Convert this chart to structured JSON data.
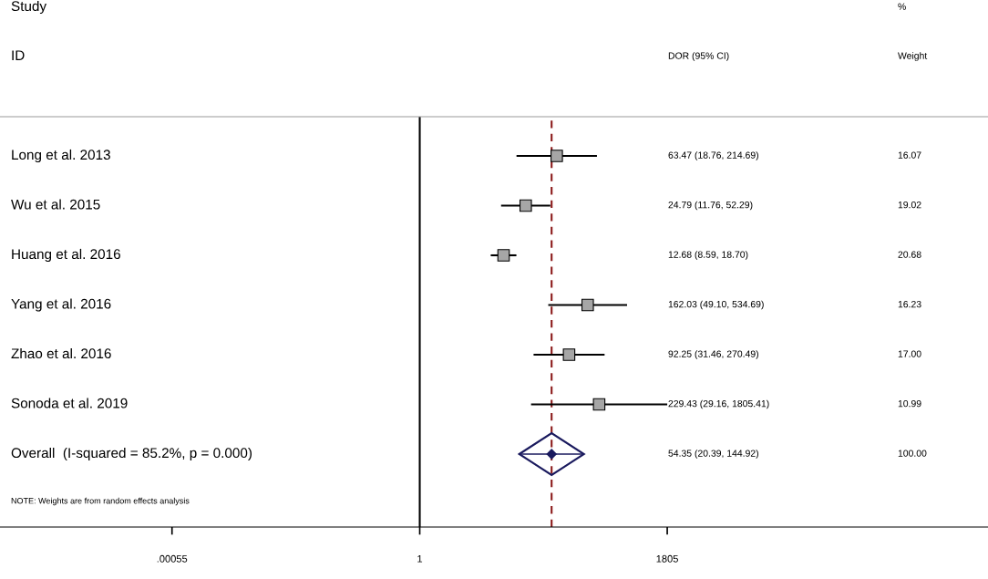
{
  "chart_data": {
    "type": "scatter",
    "orientation": "horizontal",
    "log": "x",
    "categories": [
      "Long et al. 2013",
      "Wu et al. 2015",
      "Huang et al. 2016",
      "Yang et al. 2016",
      "Zhao et al. 2016",
      "Sonoda et al. 2019",
      "Overall  (I-squared = 85.2%, p = 0.000)"
    ],
    "series": [
      {
        "marker": "square",
        "color": "#a6a6a6",
        "values": [
          63.47,
          24.79,
          12.68,
          162.03,
          92.25,
          229.43,
          null
        ],
        "errors": [
          [
            18.76,
            214.69
          ],
          [
            11.76,
            52.29
          ],
          [
            8.59,
            18.7
          ],
          [
            49.1,
            534.69
          ],
          [
            31.46,
            270.49
          ],
          [
            29.16,
            1805.41
          ],
          null
        ]
      },
      {
        "marker": "diamond",
        "color": "#1a1a5e",
        "values": [
          null,
          null,
          null,
          null,
          null,
          null,
          54.35
        ],
        "errors": [
          null,
          null,
          null,
          null,
          null,
          null,
          [
            20.39,
            144.92
          ]
        ]
      }
    ],
    "xlim": [
      3e-06,
      30000000.0
    ],
    "xticks": [
      {
        "value": 0.00055,
        "label": ".00055"
      },
      1,
      1805
    ],
    "ref_lines": [
      {
        "axis": "x",
        "value": 1,
        "color": "#000000",
        "line_style": "solid"
      },
      {
        "axis": "x",
        "value": 54.35,
        "color": "#8b1a1a",
        "line_style": "dashed"
      }
    ],
    "annotations": [
      "Study",
      "ID",
      "DOR (95% CI)",
      "%",
      "Weight",
      "63.47 (18.76, 214.69)",
      "24.79 (11.76, 52.29)",
      "12.68 (8.59, 18.70)",
      "162.03 (49.10, 534.69)",
      "92.25 (31.46, 270.49)",
      "229.43 (29.16, 1805.41)",
      "54.35 (20.39, 144.92)",
      "16.07",
      "19.02",
      "20.68",
      "16.23",
      "17.00",
      "10.99",
      "100.00",
      "NOTE: Weights are from random effects analysis"
    ],
    "grid": false,
    "legend": false
  }
}
